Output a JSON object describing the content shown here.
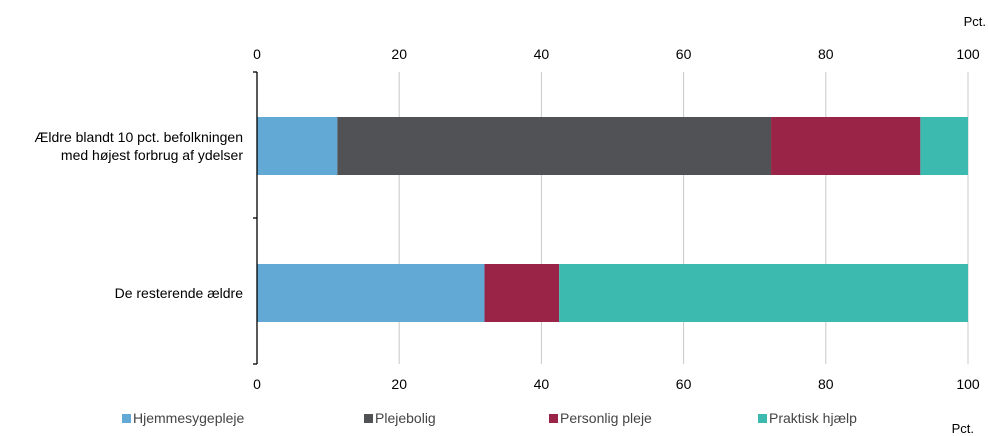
{
  "chart_data": {
    "type": "bar",
    "orientation": "horizontal",
    "stacked": true,
    "unit_top": "Pct.",
    "unit_bottom": "Pct.",
    "xlim": [
      0,
      100
    ],
    "xticks": [
      "0",
      "20",
      "40",
      "60",
      "80",
      "100"
    ],
    "grid": true,
    "legend_position": "bottom",
    "categories": [
      [
        "Ældre blandt 10 pct. befolkningen",
        "med højest forbrug af ydelser"
      ],
      [
        "De resterende ældre"
      ]
    ],
    "series": [
      {
        "name": "Hjemmesygepleje",
        "color": "#62aad5",
        "values": [
          11.3,
          32.0
        ]
      },
      {
        "name": "Plejebolig",
        "color": "#515256",
        "values": [
          61.0,
          0.0
        ]
      },
      {
        "name": "Personlig pleje",
        "color": "#9a2348",
        "values": [
          21.0,
          10.5
        ]
      },
      {
        "name": "Praktisk hjælp",
        "color": "#3cbab0",
        "values": [
          6.7,
          57.5
        ]
      }
    ]
  }
}
